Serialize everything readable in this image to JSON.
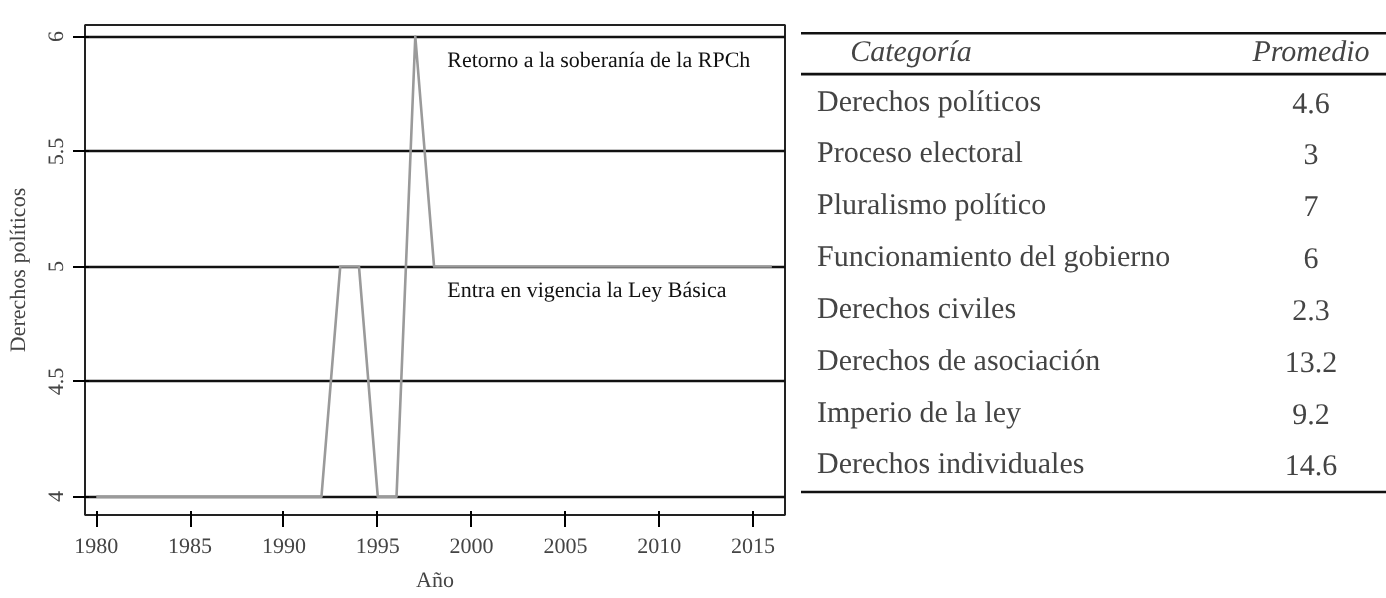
{
  "chart_data": [
    {
      "type": "line",
      "xlabel": "Año",
      "ylabel": "Derechos políticos",
      "x": [
        1980,
        1992,
        1993,
        1994,
        1995,
        1996,
        1997,
        1998,
        2016
      ],
      "series": [
        {
          "color": "#9a9a9a",
          "values": [
            4,
            4,
            5,
            5,
            4,
            4,
            6,
            5,
            5
          ]
        }
      ],
      "xlim": [
        1979.4,
        2016.7
      ],
      "ylim": [
        3.92,
        6.05
      ],
      "xticks": [
        1980,
        1985,
        1990,
        1995,
        2000,
        2005,
        2010,
        2015
      ],
      "yticks": [
        4,
        {
          "value": 4.5,
          "label": "4.5"
        },
        5,
        {
          "value": 5.5,
          "label": "5.5"
        },
        6
      ],
      "grid": "y",
      "marker": "none",
      "line_style": "solid",
      "annotations": [
        {
          "text": "Retorno a la soberanía de la RPCh",
          "x": 1997,
          "y": 6
        },
        {
          "text": "Entra en vigencia la Ley Básica",
          "x": 1997,
          "y": 5
        }
      ]
    },
    {
      "type": "other",
      "annotations": [
        "Categoría",
        "Promedio"
      ],
      "categories": [
        "Derechos políticos",
        "Proceso electoral",
        "Pluralismo político",
        "Funcionamiento del gobierno",
        "Derechos civiles",
        "Derechos de asociación",
        "Imperio de la ley",
        "Derechos individuales"
      ],
      "values": [
        4.6,
        3,
        7,
        6,
        2.3,
        13.2,
        9.2,
        14.6
      ],
      "data_labels": true
    }
  ]
}
